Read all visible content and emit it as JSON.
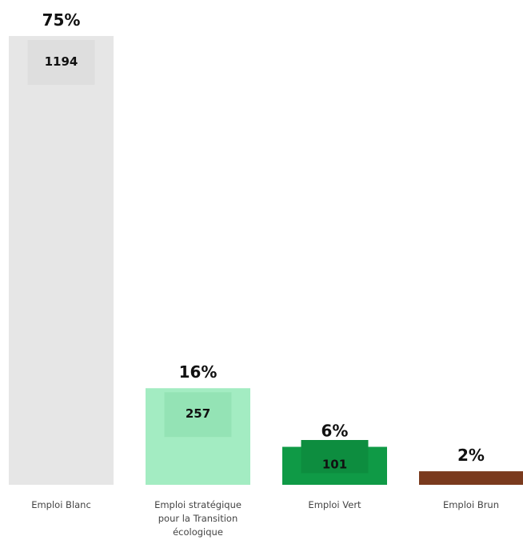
{
  "chart_data": {
    "type": "bar",
    "categories": [
      "Emploi Blanc",
      "Emploi stratégique pour la Transition écologique",
      "Emploi Vert",
      "Emploi Brun"
    ],
    "category_lines": [
      [
        "Emploi Blanc"
      ],
      [
        "Emploi stratégique",
        "pour la Transition",
        "écologique"
      ],
      [
        "Emploi Vert"
      ],
      [
        "Emploi Brun"
      ]
    ],
    "values": [
      1194,
      257,
      101,
      36
    ],
    "value_labels": [
      "1194",
      "257",
      "101",
      ""
    ],
    "percent_labels": [
      "75%",
      "16%",
      "6%",
      "2%"
    ],
    "colors": [
      "#e6e6e6",
      "#a3ecc2",
      "#0f9a46",
      "#7a3a1e"
    ],
    "inner_label_colors": [
      "#dedede",
      "#94e3b5",
      "#0d8d3f",
      ""
    ],
    "title": "",
    "xlabel": "",
    "ylabel": "",
    "ylim": [
      0,
      1194
    ],
    "grid": false,
    "legend": "none"
  }
}
